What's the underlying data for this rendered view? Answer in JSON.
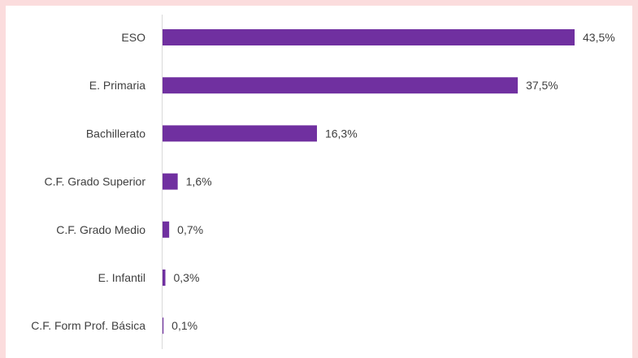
{
  "chart_data": {
    "type": "bar",
    "orientation": "horizontal",
    "categories": [
      "ESO",
      "E. Primaria",
      "Bachillerato",
      "C.F. Grado Superior",
      "C.F. Grado Medio",
      "E. Infantil",
      "C.F. Form Prof. Básica"
    ],
    "values": [
      43.5,
      37.5,
      16.3,
      1.6,
      0.7,
      0.3,
      0.1
    ],
    "value_labels": [
      "43,5%",
      "37,5%",
      "16,3%",
      "1,6%",
      "0,7%",
      "0,3%",
      "0,1%"
    ],
    "bar_color": "#7030a0",
    "axis_color": "#d9d9d9",
    "xlim": [
      0,
      43.5
    ],
    "grid": false,
    "legend": "none"
  }
}
